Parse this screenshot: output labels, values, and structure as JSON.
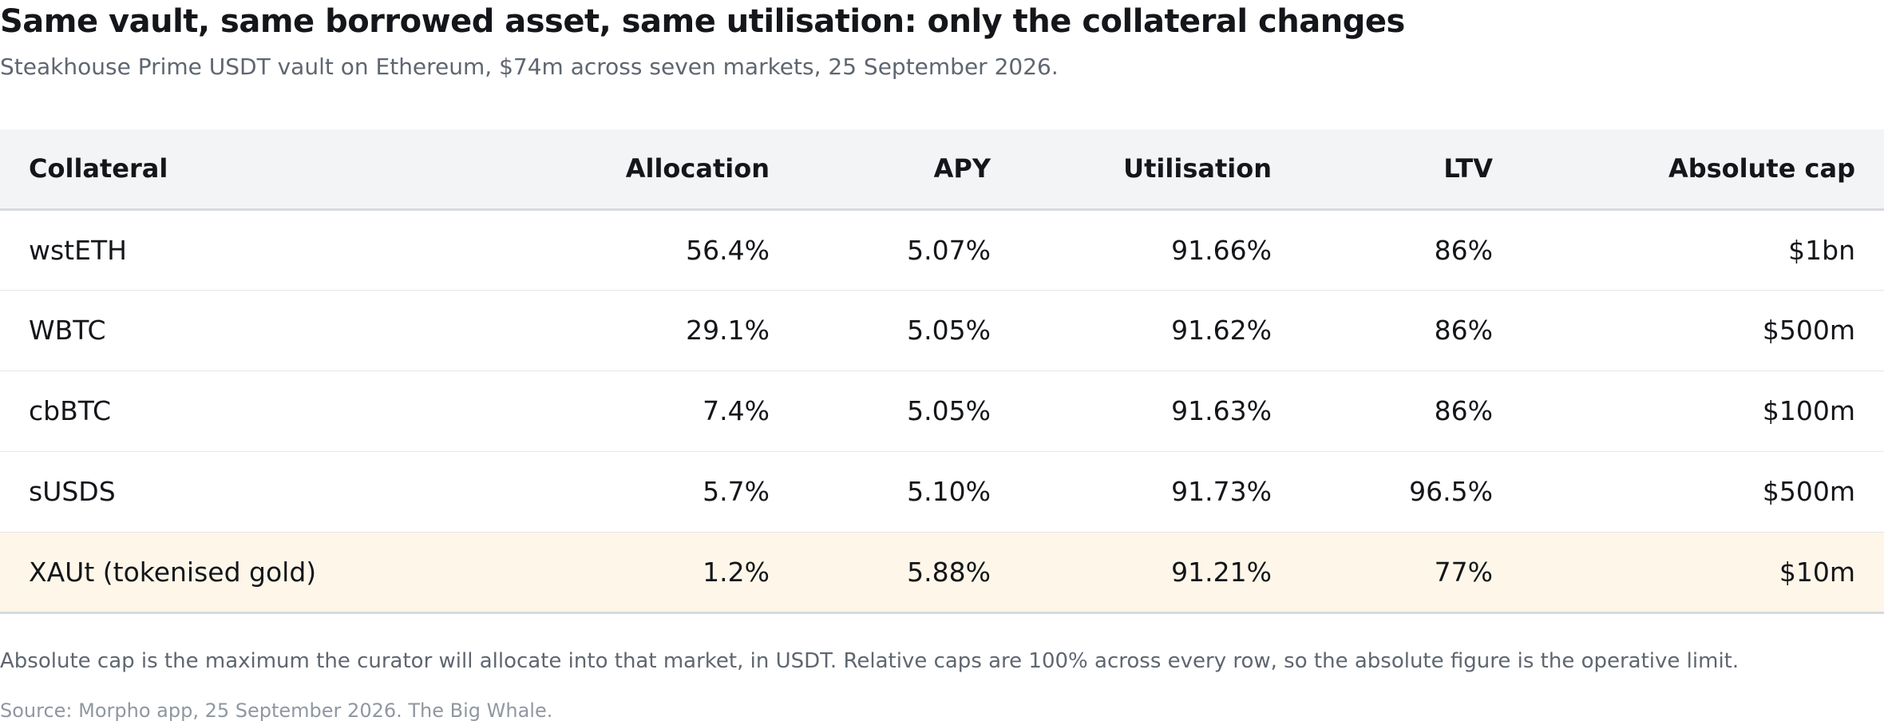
{
  "header": {
    "title": "Same vault, same borrowed asset, same utilisation: only the collateral changes",
    "subtitle": "Steakhouse Prime USDT vault on Ethereum, $74m across seven markets, 25 September 2026."
  },
  "table": {
    "columns": [
      "Collateral",
      "Allocation",
      "APY",
      "Utilisation",
      "LTV",
      "Absolute cap"
    ],
    "rows": [
      {
        "collateral": "wstETH",
        "allocation": "56.4%",
        "apy": "5.07%",
        "utilisation": "91.66%",
        "ltv": "86%",
        "absolute_cap": "$1bn"
      },
      {
        "collateral": "WBTC",
        "allocation": "29.1%",
        "apy": "5.05%",
        "utilisation": "91.62%",
        "ltv": "86%",
        "absolute_cap": "$500m"
      },
      {
        "collateral": "cbBTC",
        "allocation": "7.4%",
        "apy": "5.05%",
        "utilisation": "91.63%",
        "ltv": "86%",
        "absolute_cap": "$100m"
      },
      {
        "collateral": "sUSDS",
        "allocation": "5.7%",
        "apy": "5.10%",
        "utilisation": "91.73%",
        "ltv": "96.5%",
        "absolute_cap": "$500m"
      },
      {
        "collateral": "XAUt (tokenised gold)",
        "allocation": "1.2%",
        "apy": "5.88%",
        "utilisation": "91.21%",
        "ltv": "77%",
        "absolute_cap": "$10m"
      }
    ],
    "highlight_color": "#fef7e9",
    "header_background": "#f3f4f6"
  },
  "footer": {
    "note": "Absolute cap is the maximum the curator will allocate into that market, in USDT. Relative caps are 100% across every row, so the absolute figure is the operative limit.",
    "source": "Source: Morpho app, 25 September 2026. The Big Whale."
  }
}
